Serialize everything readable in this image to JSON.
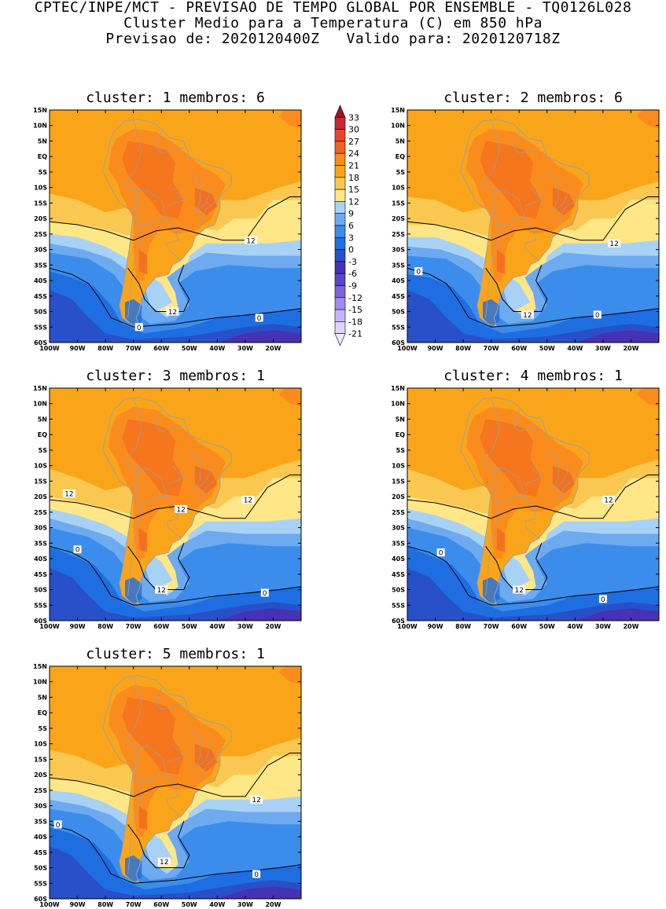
{
  "header": {
    "line1": "CPTEC/INPE/MCT - PREVISAO DE TEMPO GLOBAL POR ENSEMBLE - TQ0126L028",
    "line2": "Cluster Medio para a Temperatura (C) em 850 hPa",
    "line3": "Previsao de: 2020120400Z   Valido para: 2020120718Z"
  },
  "colorbar": {
    "labels": [
      "33",
      "30",
      "27",
      "24",
      "21",
      "18",
      "15",
      "12",
      "9",
      "6",
      "3",
      "0",
      "-3",
      "-6",
      "-9",
      "-12",
      "-15",
      "-18",
      "-21"
    ],
    "colors": [
      "#a0141e",
      "#c82832",
      "#e6462d",
      "#f0641e",
      "#fa8c1e",
      "#faa519",
      "#fac850",
      "#ffe687",
      "#a8d2f5",
      "#6eaaf0",
      "#3c8ceb",
      "#1e6ee1",
      "#2850c8",
      "#4632b4",
      "#5a46c8",
      "#7864dc",
      "#a08cf0",
      "#c8b4fa",
      "#e1d2ff",
      "#f0e6ff"
    ],
    "colors_note": "bands from top (>33) to bottom (<-21)"
  },
  "map": {
    "lat_ticks": [
      "15N",
      "10N",
      "5N",
      "EQ",
      "5S",
      "10S",
      "15S",
      "20S",
      "25S",
      "30S",
      "35S",
      "40S",
      "45S",
      "50S",
      "55S",
      "60S"
    ],
    "lon_ticks": [
      "100W",
      "90W",
      "80W",
      "70W",
      "60W",
      "50W",
      "40W",
      "30W",
      "20W"
    ],
    "lat_range": [
      -60,
      15
    ],
    "lon_range": [
      -100,
      -10
    ],
    "contour_levels": [
      0,
      12
    ]
  },
  "panels": [
    {
      "title": "cluster: 1   membros: 6",
      "labels": [
        {
          "text": "12",
          "lon": -28,
          "lat": -27
        },
        {
          "text": "12",
          "lon": -56,
          "lat": -50
        },
        {
          "text": "0",
          "lon": -68,
          "lat": -55
        },
        {
          "text": "0",
          "lon": -25,
          "lat": -52
        }
      ]
    },
    {
      "title": "cluster: 2   membros: 6",
      "labels": [
        {
          "text": "12",
          "lon": -26,
          "lat": -28
        },
        {
          "text": "12",
          "lon": -57,
          "lat": -51
        },
        {
          "text": "0",
          "lon": -96,
          "lat": -37
        },
        {
          "text": "0",
          "lon": -32,
          "lat": -51
        }
      ]
    },
    {
      "title": "cluster: 3   membros: 1",
      "labels": [
        {
          "text": "12",
          "lon": -93,
          "lat": -19
        },
        {
          "text": "12",
          "lon": -29,
          "lat": -21
        },
        {
          "text": "12",
          "lon": -53,
          "lat": -24
        },
        {
          "text": "12",
          "lon": -60,
          "lat": -50
        },
        {
          "text": "0",
          "lon": -90,
          "lat": -37
        },
        {
          "text": "0",
          "lon": -23,
          "lat": -51
        }
      ]
    },
    {
      "title": "cluster: 4   membros: 1",
      "labels": [
        {
          "text": "12",
          "lon": -28,
          "lat": -21
        },
        {
          "text": "12",
          "lon": -60,
          "lat": -50
        },
        {
          "text": "0",
          "lon": -88,
          "lat": -38
        },
        {
          "text": "0",
          "lon": -30,
          "lat": -53
        }
      ]
    },
    {
      "title": "cluster: 5   membros: 1",
      "labels": [
        {
          "text": "12",
          "lon": -26,
          "lat": -28
        },
        {
          "text": "12",
          "lon": -59,
          "lat": -48
        },
        {
          "text": "0",
          "lon": -97,
          "lat": -36
        },
        {
          "text": "0",
          "lon": -26,
          "lat": -52
        }
      ]
    }
  ]
}
